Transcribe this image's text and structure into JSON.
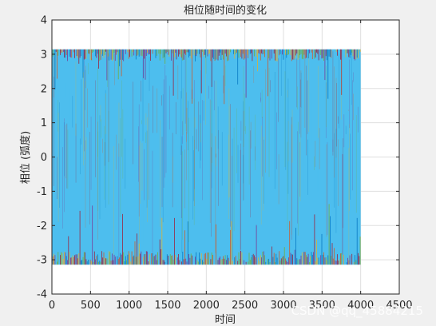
{
  "chart_data": {
    "type": "line",
    "title": "相位随时间的变化",
    "xlabel": "时间",
    "ylabel": "相位 (弧度)",
    "xlim": [
      0,
      4500
    ],
    "ylim": [
      -4,
      4
    ],
    "xticks": [
      0,
      500,
      1000,
      1500,
      2000,
      2500,
      3000,
      3500,
      4000,
      4500
    ],
    "yticks": [
      -4,
      -3,
      -2,
      -1,
      0,
      1,
      2,
      3,
      4
    ],
    "grid": true,
    "legend": "none",
    "signal": {
      "x_start": 0,
      "x_end": 4000,
      "y_min": -3.1416,
      "y_max": 3.1416,
      "description_values": "dense wrapped phase, many overlapping series filling the range [-pi, pi]"
    },
    "series_colors": [
      "#0072bd",
      "#d95319",
      "#edb120",
      "#7e2f8e",
      "#77ac30",
      "#4dbeee",
      "#a2142f"
    ],
    "dominant_color": "#4dbeee"
  },
  "watermark": "CSDN @qq_45884215"
}
